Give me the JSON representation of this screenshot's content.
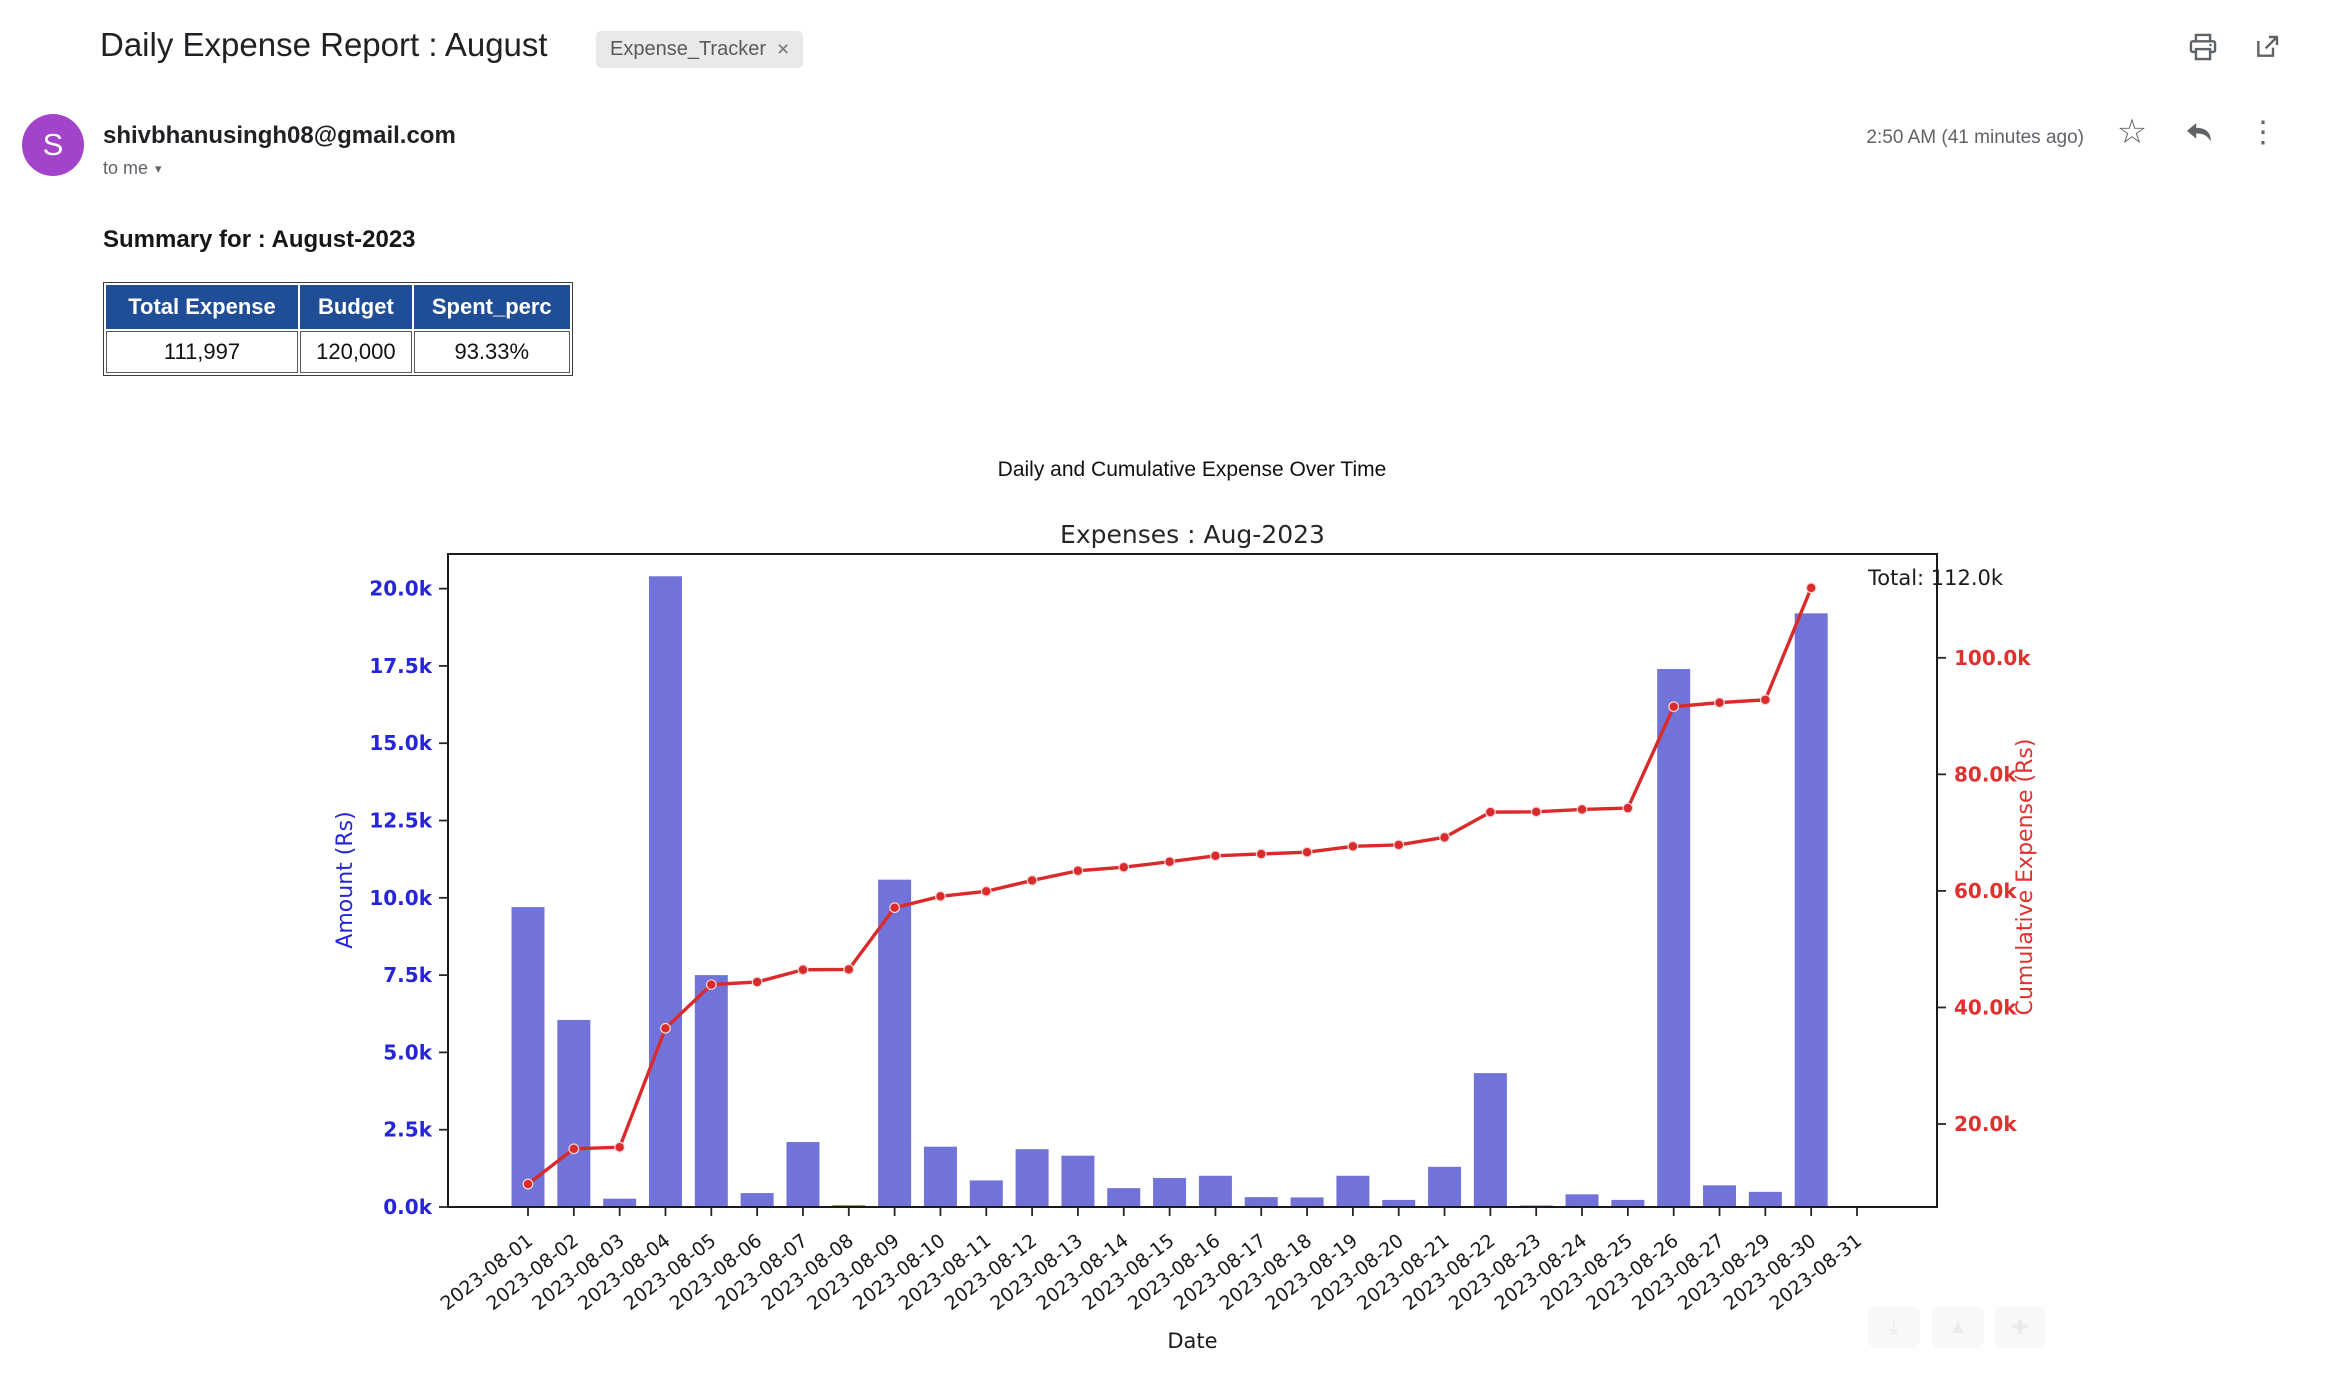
{
  "email": {
    "subject": "Daily Expense Report : August",
    "label": "Expense_Tracker",
    "label_close": "×",
    "sender": "shivbhanusingh08@gmail.com",
    "recipient": "to me",
    "recipient_caret": "▾",
    "timestamp": "2:50 AM (41 minutes ago)",
    "avatar_letter": "S",
    "avatar_color": "#a343c9",
    "star_glyph": "☆",
    "more_glyph": "⋮"
  },
  "summary": {
    "heading": "Summary for : August-2023",
    "table": {
      "headers": [
        "Total Expense",
        "Budget",
        "Spent_perc"
      ],
      "rows": [
        [
          "111,997",
          "120,000",
          "93.33%"
        ]
      ],
      "header_bg": "#1F4E96"
    }
  },
  "chart_heading": "Daily and Cumulative Expense Over Time",
  "chart_data": {
    "type": "bar",
    "title": "Expenses : Aug-2023",
    "xlabel": "Date",
    "ylabel_left": "Amount (Rs)",
    "ylabel_right": "Cumulative Expense (Rs)",
    "annotation": "Total: 112.0k",
    "legend_position": "none",
    "grid": false,
    "categories": [
      "2023-08-01",
      "2023-08-02",
      "2023-08-03",
      "2023-08-04",
      "2023-08-05",
      "2023-08-06",
      "2023-08-07",
      "2023-08-08",
      "2023-08-09",
      "2023-08-10",
      "2023-08-11",
      "2023-08-12",
      "2023-08-13",
      "2023-08-14",
      "2023-08-15",
      "2023-08-16",
      "2023-08-17",
      "2023-08-18",
      "2023-08-19",
      "2023-08-20",
      "2023-08-21",
      "2023-08-22",
      "2023-08-23",
      "2023-08-24",
      "2023-08-25",
      "2023-08-26",
      "2023-08-27",
      "2023-08-29",
      "2023-08-30",
      "2023-08-31"
    ],
    "series": [
      {
        "name": "Daily Expense",
        "type": "bar",
        "axis": "left",
        "color": "#7173d8",
        "values": [
          9700,
          6050,
          270,
          20400,
          7500,
          450,
          2100,
          60,
          10587,
          1950,
          860,
          1870,
          1660,
          610,
          940,
          1010,
          320,
          310,
          1010,
          230,
          1300,
          4330,
          50,
          410,
          230,
          17400,
          700,
          490,
          19200,
          0
        ]
      },
      {
        "name": "Cumulative Expense",
        "type": "line",
        "axis": "right",
        "color": "#d92b2b",
        "values": [
          9700,
          15750,
          16020,
          36420,
          43920,
          44370,
          46470,
          46530,
          57117,
          59067,
          59927,
          61797,
          63457,
          64067,
          65007,
          66017,
          66337,
          66647,
          67657,
          67887,
          69187,
          73517,
          73567,
          73977,
          74207,
          91607,
          92307,
          92797,
          111997,
          null
        ]
      }
    ],
    "left_axis": {
      "min": 0,
      "max": 21120,
      "tick_values": [
        0,
        2500,
        5000,
        7500,
        10000,
        12500,
        15000,
        17500,
        20000
      ],
      "tick_labels": [
        "0.0k",
        "2.5k",
        "5.0k",
        "7.5k",
        "10.0k",
        "12.5k",
        "15.0k",
        "17.5k",
        "20.0k"
      ],
      "color": "#2626d8"
    },
    "right_axis": {
      "min": 5760,
      "max": 117810,
      "tick_values": [
        20000,
        40000,
        60000,
        80000,
        100000
      ],
      "tick_labels": [
        "20.0k",
        "40.0k",
        "60.0k",
        "80.0k",
        "100.0k"
      ],
      "color": "#e03131"
    },
    "colors": {
      "bar": "#7173d8",
      "line": "#d92b2b",
      "spine": "#1a1a1a",
      "tick": "#262626",
      "text": "#1a1a1a"
    }
  }
}
